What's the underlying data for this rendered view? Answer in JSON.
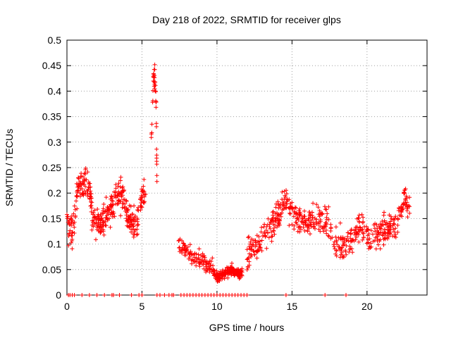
{
  "chart_data": {
    "type": "scatter",
    "title": "Day 218 of 2022, SRMTID for receiver glps",
    "xlabel": "GPS time / hours",
    "ylabel": "SRMTID / TECUs",
    "xlim": [
      0,
      24
    ],
    "ylim": [
      0,
      0.5
    ],
    "xticks": [
      0,
      5,
      10,
      15,
      20
    ],
    "xtick_labels": [
      "0",
      "5",
      "10",
      "15",
      "20"
    ],
    "yticks": [
      0,
      0.05,
      0.1,
      0.15,
      0.2,
      0.25,
      0.3,
      0.35,
      0.4,
      0.45,
      0.5
    ],
    "ytick_labels": [
      "0",
      "0.05",
      "0.1",
      "0.15",
      "0.2",
      "0.25",
      "0.3",
      "0.35",
      "0.4",
      "0.45",
      "0.5"
    ],
    "grid": true,
    "marker": "+",
    "color": "#ff0000",
    "series": [
      {
        "name": "SRMTID",
        "segments": [
          {
            "x": [
              0.0,
              0.25,
              0.5,
              0.75,
              1.0,
              1.25,
              1.5,
              1.75,
              2.0,
              2.25,
              2.5,
              2.75,
              3.0,
              3.25,
              3.5,
              3.75,
              4.0,
              4.25,
              4.5,
              4.75,
              5.0,
              5.25
            ],
            "y": [
              0.15,
              0.12,
              0.14,
              0.22,
              0.21,
              0.23,
              0.2,
              0.14,
              0.15,
              0.14,
              0.15,
              0.16,
              0.17,
              0.19,
              0.2,
              0.19,
              0.16,
              0.15,
              0.13,
              0.15,
              0.19,
              0.2
            ],
            "spread": 0.045,
            "n": 380
          },
          {
            "x": [
              5.6,
              5.75,
              5.85,
              5.95,
              6.0
            ],
            "y": [
              0.28,
              0.42,
              0.43,
              0.38,
              0.22
            ],
            "spread": 0.03,
            "n": 40
          },
          {
            "x": [
              7.4,
              7.8,
              8.2,
              8.6,
              9.0,
              9.4,
              9.8
            ],
            "y": [
              0.1,
              0.09,
              0.08,
              0.07,
              0.07,
              0.06,
              0.05
            ],
            "spread": 0.025,
            "n": 110
          },
          {
            "x": [
              9.8,
              10.2,
              10.6,
              11.0,
              11.4,
              11.7
            ],
            "y": [
              0.04,
              0.035,
              0.045,
              0.05,
              0.04,
              0.045
            ],
            "spread": 0.015,
            "n": 160
          },
          {
            "x": [
              12.0,
              12.5,
              13.0,
              13.5,
              14.0,
              14.5,
              15.0,
              15.5,
              16.0,
              16.5,
              17.0,
              17.5,
              18.0,
              18.5,
              19.0,
              19.5,
              20.0,
              20.5,
              21.0,
              21.5,
              22.0,
              22.5,
              22.9
            ],
            "y": [
              0.08,
              0.09,
              0.11,
              0.13,
              0.15,
              0.19,
              0.16,
              0.15,
              0.14,
              0.15,
              0.15,
              0.14,
              0.1,
              0.1,
              0.11,
              0.14,
              0.12,
              0.11,
              0.12,
              0.13,
              0.13,
              0.2,
              0.16
            ],
            "spread": 0.045,
            "n": 560
          }
        ],
        "zero_points_x": [
          0.1,
          0.2,
          0.35,
          0.5,
          1.0,
          1.5,
          2.0,
          2.5,
          3.0,
          3.1,
          3.5,
          4.3,
          4.8,
          5.0,
          6.0,
          6.2,
          6.5,
          6.8,
          7.0,
          7.1,
          7.6,
          7.8,
          8.0,
          8.2,
          8.4,
          8.6,
          8.8,
          9.0,
          9.2,
          9.4,
          9.6,
          9.8,
          10.0,
          10.2,
          10.4,
          10.6,
          10.8,
          11.0,
          11.2,
          11.4,
          11.6,
          11.8,
          12.0,
          14.6,
          17.2,
          18.6
        ]
      }
    ]
  }
}
